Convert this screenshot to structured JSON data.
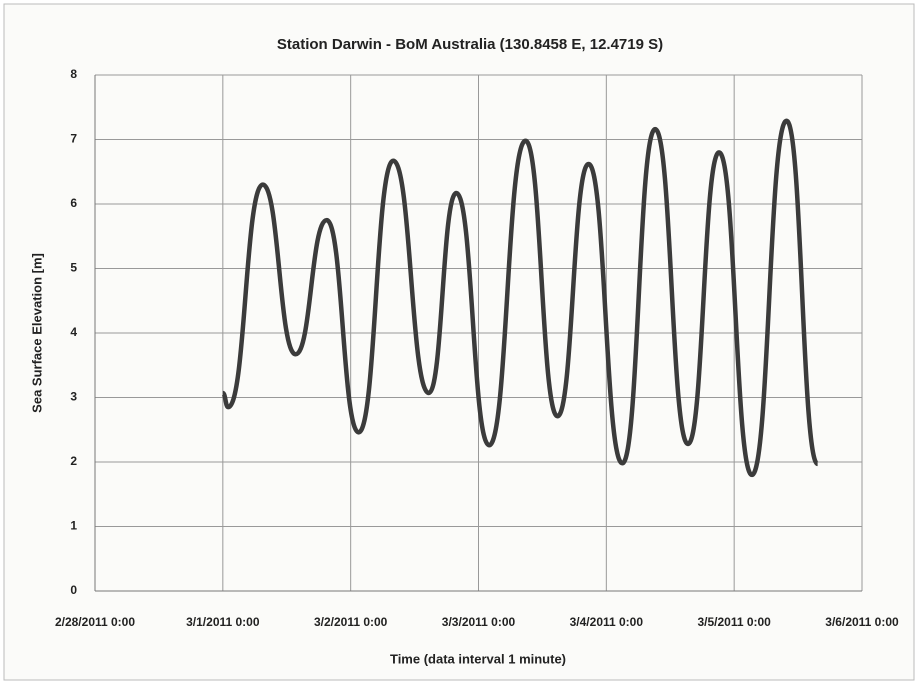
{
  "chart_data": {
    "type": "line",
    "title": "Station Darwin - BoM Australia (130.8458 E, 12.4719 S)",
    "x_label": "Time (data interval 1 minute)",
    "y_label": "Sea Surface Elevation [m]",
    "x": [
      "2011-03-01T00:00",
      "2011-03-01T01:00",
      "2011-03-01T07:30",
      "2011-03-01T13:40",
      "2011-03-01T19:30",
      "2011-03-02T01:30",
      "2011-03-02T08:00",
      "2011-03-02T14:40",
      "2011-03-02T19:50",
      "2011-03-03T02:00",
      "2011-03-03T08:50",
      "2011-03-03T14:50",
      "2011-03-03T20:40",
      "2011-03-04T03:00",
      "2011-03-04T09:10",
      "2011-03-04T15:20",
      "2011-03-04T21:10",
      "2011-03-05T03:20",
      "2011-03-05T09:50",
      "2011-03-05T15:40"
    ],
    "series": [
      {
        "name": "Sea Surface Elevation",
        "color": "#3b3b3b",
        "values": [
          3.07,
          2.85,
          6.3,
          3.67,
          5.75,
          2.46,
          6.67,
          3.07,
          6.17,
          2.26,
          6.98,
          2.71,
          6.62,
          1.98,
          7.16,
          2.28,
          6.8,
          1.8,
          7.29,
          1.97
        ]
      }
    ],
    "xlim": [
      "2011-02-28T00:00",
      "2011-03-06T00:00"
    ],
    "xticks": [
      {
        "value": "2011-02-28T00:00",
        "label": "2/28/2011 0:00"
      },
      {
        "value": "2011-03-01T00:00",
        "label": "3/1/2011 0:00"
      },
      {
        "value": "2011-03-02T00:00",
        "label": "3/2/2011 0:00"
      },
      {
        "value": "2011-03-03T00:00",
        "label": "3/3/2011 0:00"
      },
      {
        "value": "2011-03-04T00:00",
        "label": "3/4/2011 0:00"
      },
      {
        "value": "2011-03-05T00:00",
        "label": "3/5/2011 0:00"
      },
      {
        "value": "2011-03-06T00:00",
        "label": "3/6/2011 0:00"
      }
    ],
    "ylim": [
      0,
      8
    ],
    "yticks": [
      0,
      1,
      2,
      3,
      4,
      5,
      6,
      7,
      8
    ],
    "grid": true
  }
}
